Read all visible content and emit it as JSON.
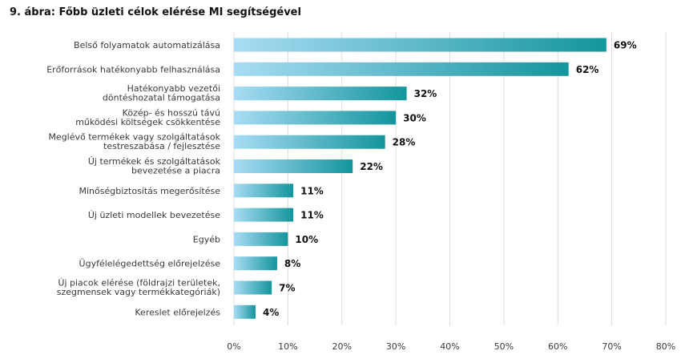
{
  "chart_data": {
    "type": "bar",
    "orientation": "horizontal",
    "title": "9. ábra: Főbb üzleti célok elérése MI segítségével",
    "categories": [
      [
        "Belső folyamatok automatizálása"
      ],
      [
        "Erőforrások hatékonyabb felhasználása"
      ],
      [
        "Hatékonyabb vezetői",
        "döntéshozatal támogatása"
      ],
      [
        "Közép- és hosszú távú",
        "működési költségek csökkentése"
      ],
      [
        "Meglévő termékek vagy szolgáltatások",
        "testreszabása / fejlesztése"
      ],
      [
        "Új termékek és szolgáltatások",
        "bevezetése a piacra"
      ],
      [
        "Minőségbiztosítás megerősítése"
      ],
      [
        "Új üzleti modellek bevezetése"
      ],
      [
        "Egyéb"
      ],
      [
        "Ügyfélelégedettség előrejelzése"
      ],
      [
        "Új piacok elérése (földrajzi területek,",
        "szegmensek vagy termékkategóriák)"
      ],
      [
        "Kereslet előrejelzés"
      ]
    ],
    "values": [
      69,
      62,
      32,
      30,
      28,
      22,
      11,
      11,
      10,
      8,
      7,
      4
    ],
    "value_labels": [
      "69%",
      "62%",
      "32%",
      "30%",
      "28%",
      "22%",
      "11%",
      "11%",
      "10%",
      "8%",
      "7%",
      "4%"
    ],
    "xticks": [
      0,
      10,
      20,
      30,
      40,
      50,
      60,
      70,
      80
    ],
    "xtick_labels": [
      "0%",
      "10%",
      "20%",
      "30%",
      "40%",
      "50%",
      "60%",
      "70%",
      "80%"
    ],
    "xlim": [
      0,
      80
    ],
    "grid": true,
    "colors": {
      "gradient_start": "#a8dcf4",
      "gradient_end": "#14959c",
      "grid": "#dddddd"
    }
  }
}
